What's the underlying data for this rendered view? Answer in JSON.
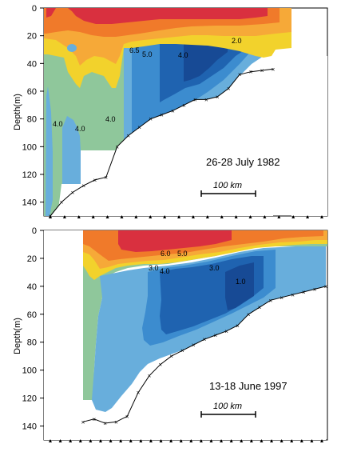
{
  "chart_data": [
    {
      "type": "heatmap",
      "title": "",
      "annotation": "26-28 July 1982",
      "scale_bar_label": "100 km",
      "ylabel": "Depth(m)",
      "xlabel": "",
      "yticks": [
        0,
        20,
        40,
        60,
        80,
        100,
        120,
        140
      ],
      "ylim": [
        150,
        0
      ],
      "contour_labels": [
        "6.5",
        "5.0",
        "4.0",
        "2.0",
        "4.0",
        "4.0",
        "4.0"
      ],
      "station_count": 20,
      "bottom_profile_depths": [
        150,
        140,
        133,
        128,
        124,
        122,
        100,
        92,
        86,
        80,
        77,
        74,
        70,
        66,
        66,
        64,
        58,
        48,
        46,
        45,
        44
      ],
      "colors": {
        "surface_red": "#d9303f",
        "orange": "#f07a2a",
        "light_orange": "#f6a938",
        "yellow": "#f2d22c",
        "green": "#8fc79b",
        "light_blue": "#68aedc",
        "mid_blue": "#3c8ccf",
        "dark_blue": "#1f63b0",
        "navy": "#174a95"
      }
    },
    {
      "type": "heatmap",
      "title": "",
      "annotation": "13-18 June 1997",
      "scale_bar_label": "100 km",
      "ylabel": "Depth(m)",
      "xlabel": "",
      "yticks": [
        0,
        20,
        40,
        60,
        80,
        100,
        120,
        140
      ],
      "ylim": [
        150,
        0
      ],
      "contour_labels": [
        "6.0",
        "5.0",
        "4.0",
        "3.0",
        "3.0",
        "1.0"
      ],
      "station_count": 28,
      "bottom_profile_depths": [
        137,
        135,
        138,
        137,
        133,
        116,
        104,
        96,
        90,
        86,
        82,
        78,
        75,
        72,
        68,
        60,
        55,
        50,
        48,
        46,
        44,
        42,
        40
      ],
      "colors": {
        "surface_red": "#d9303f",
        "orange": "#f07a2a",
        "light_orange": "#f6a938",
        "yellow": "#f2d22c",
        "green": "#8fc79b",
        "light_blue": "#68aedc",
        "mid_blue": "#3c8ccf",
        "dark_blue": "#1f63b0",
        "navy": "#174a95"
      }
    }
  ]
}
